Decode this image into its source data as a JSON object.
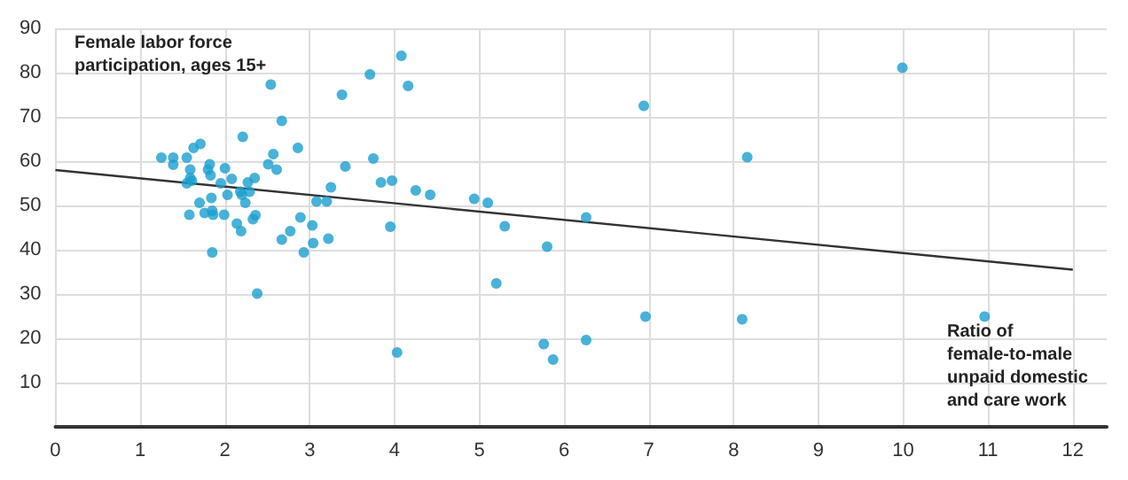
{
  "chart_data": {
    "type": "scatter",
    "ylabel": "Female labor force participation, ages 15+",
    "xlabel": "Ratio of female-to-male unpaid domestic and care work",
    "xlim": [
      0,
      12.4
    ],
    "xticks": [
      0,
      1,
      2,
      3,
      4,
      5,
      6,
      7,
      8,
      9,
      10,
      11,
      12
    ],
    "ylim": [
      0,
      90
    ],
    "yticks": [
      10,
      20,
      30,
      40,
      50,
      60,
      70,
      80,
      90
    ],
    "grid": true,
    "marker": "circle",
    "series": [
      {
        "color": "#1a9fcf",
        "x": [
          1.25,
          1.39,
          1.39,
          1.55,
          1.59,
          1.63,
          1.71,
          1.59,
          1.61,
          1.55,
          1.7,
          1.58,
          1.76,
          1.82,
          1.8,
          1.83,
          1.84,
          1.85,
          1.86,
          1.85,
          1.95,
          2.0,
          1.99,
          2.03,
          2.08,
          2.14,
          2.19,
          2.21,
          2.18,
          2.2,
          2.24,
          2.27,
          2.29,
          2.35,
          2.33,
          2.36,
          2.38,
          2.51,
          2.54,
          2.57,
          2.61,
          2.67,
          2.67,
          2.77,
          2.86,
          2.89,
          2.93,
          3.03,
          3.04,
          3.08,
          3.2,
          3.22,
          3.25,
          3.38,
          3.42,
          3.71,
          3.75,
          3.84,
          3.95,
          3.97,
          4.03,
          4.08,
          4.16,
          4.25,
          4.42,
          4.94,
          5.1,
          5.2,
          5.3,
          5.8,
          5.76,
          5.87,
          6.26,
          6.26,
          6.94,
          6.96,
          8.16,
          8.1,
          9.99,
          10.96
        ],
        "values": [
          60.8,
          60.8,
          59.2,
          60.8,
          58.1,
          63,
          63.9,
          56.2,
          55.6,
          55,
          50.6,
          47.9,
          48.3,
          59.3,
          58.1,
          56.8,
          51.7,
          48.8,
          47.9,
          39.4,
          55,
          58.4,
          47.9,
          52.4,
          56,
          45.9,
          44.2,
          65.5,
          53.1,
          52.4,
          50.6,
          55.2,
          53.1,
          56.2,
          46.9,
          47.8,
          30.1,
          59.3,
          77.3,
          61.6,
          58.1,
          69.1,
          42.3,
          44.2,
          63,
          47.3,
          39.4,
          45.5,
          41.5,
          50.9,
          50.9,
          42.5,
          54.1,
          75,
          58.8,
          79.6,
          60.6,
          55.2,
          45.2,
          55.6,
          16.8,
          83.8,
          77,
          53.4,
          52.4,
          51.5,
          50.6,
          32.4,
          45.3,
          40.7,
          18.7,
          15.2,
          47.3,
          19.6,
          72.5,
          24.9,
          60.9,
          24.3,
          81.1,
          24.9
        ]
      },
      {
        "type": "line",
        "color": "#333333",
        "marker": "none",
        "x": [
          0,
          12
        ],
        "values": [
          58,
          35.5
        ]
      }
    ]
  }
}
